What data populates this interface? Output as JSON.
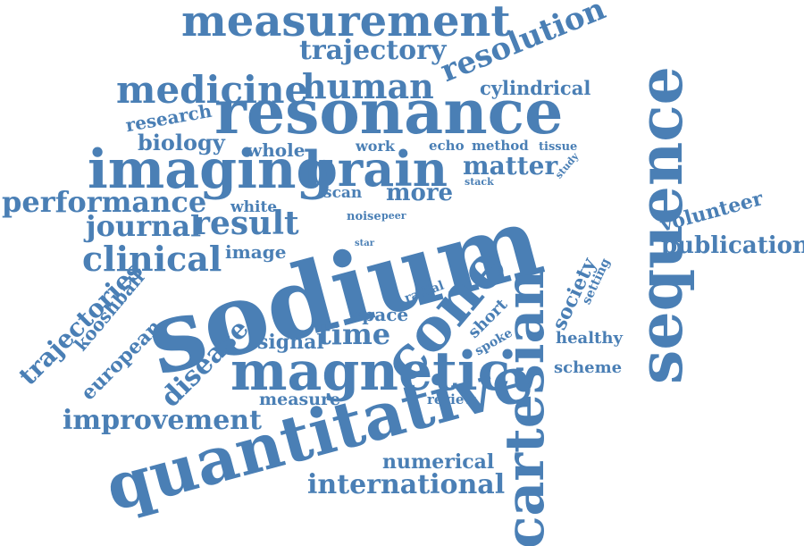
{
  "colors": {
    "word": "#4a7fb5",
    "background": "#ffffff"
  },
  "words": [
    {
      "id": "sodium",
      "text": "sodium"
    },
    {
      "id": "sequence",
      "text": "sequence"
    },
    {
      "id": "resonance",
      "text": "resonance"
    },
    {
      "id": "magnetic",
      "text": "magnetic"
    },
    {
      "id": "quantitative",
      "text": "quantitative"
    },
    {
      "id": "cartesian",
      "text": "cartesian"
    },
    {
      "id": "imaging",
      "text": "imaging"
    },
    {
      "id": "brain",
      "text": "brain"
    },
    {
      "id": "cone",
      "text": "cone"
    },
    {
      "id": "measurement",
      "text": "measurement"
    },
    {
      "id": "medicine",
      "text": "medicine"
    },
    {
      "id": "human",
      "text": "human"
    },
    {
      "id": "resolution",
      "text": "resolution"
    },
    {
      "id": "trajectory",
      "text": "trajectory"
    },
    {
      "id": "cylindrical",
      "text": "cylindrical"
    },
    {
      "id": "research",
      "text": "research"
    },
    {
      "id": "biology",
      "text": "biology"
    },
    {
      "id": "whole",
      "text": "whole"
    },
    {
      "id": "work",
      "text": "work"
    },
    {
      "id": "echo",
      "text": "echo"
    },
    {
      "id": "method",
      "text": "method"
    },
    {
      "id": "tissue",
      "text": "tissue"
    },
    {
      "id": "study",
      "text": "study"
    },
    {
      "id": "matter",
      "text": "matter"
    },
    {
      "id": "performance",
      "text": "performance"
    },
    {
      "id": "white",
      "text": "white"
    },
    {
      "id": "scan",
      "text": "scan"
    },
    {
      "id": "more",
      "text": "more"
    },
    {
      "id": "stack",
      "text": "stack"
    },
    {
      "id": "journal",
      "text": "journal"
    },
    {
      "id": "result",
      "text": "result"
    },
    {
      "id": "noise",
      "text": "noise"
    },
    {
      "id": "peer",
      "text": "peer"
    },
    {
      "id": "volunteer",
      "text": "volunteer"
    },
    {
      "id": "publication",
      "text": "publication"
    },
    {
      "id": "clinical",
      "text": "clinical"
    },
    {
      "id": "image",
      "text": "image"
    },
    {
      "id": "star",
      "text": "star"
    },
    {
      "id": "society",
      "text": "society"
    },
    {
      "id": "setting",
      "text": "setting"
    },
    {
      "id": "trajectories",
      "text": "trajectories"
    },
    {
      "id": "kooshball",
      "text": "kooshball"
    },
    {
      "id": "radial",
      "text": "radial"
    },
    {
      "id": "space",
      "text": "space"
    },
    {
      "id": "short",
      "text": "short"
    },
    {
      "id": "healthy",
      "text": "healthy"
    },
    {
      "id": "european",
      "text": "european"
    },
    {
      "id": "signal",
      "text": "signal"
    },
    {
      "id": "time",
      "text": "time"
    },
    {
      "id": "spoke",
      "text": "spoke"
    },
    {
      "id": "disease",
      "text": "disease"
    },
    {
      "id": "scheme",
      "text": "scheme"
    },
    {
      "id": "measure",
      "text": "measure"
    },
    {
      "id": "review",
      "text": "review"
    },
    {
      "id": "improvement",
      "text": "improvement"
    },
    {
      "id": "numerical",
      "text": "numerical"
    },
    {
      "id": "international",
      "text": "international"
    }
  ]
}
